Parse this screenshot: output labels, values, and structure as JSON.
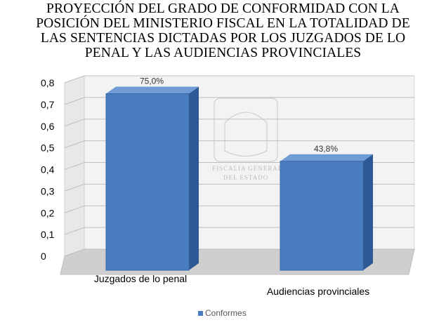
{
  "chart_data": {
    "type": "bar",
    "title_lines": [
      "PROYECCIÓN DEL GRADO DE CONFORMIDAD CON LA",
      "POSICIÓN DEL MINISTERIO FISCAL EN LA TOTALIDAD DE",
      "LAS SENTENCIAS DICTADAS POR LOS JUZGADOS DE LO",
      "PENAL Y LAS AUDIENCIAS PROVINCIALES"
    ],
    "categories": [
      "Juzgados de lo penal",
      "Audiencias provinciales"
    ],
    "series": [
      {
        "name": "Conformes",
        "values": [
          0.75,
          0.438
        ],
        "labels": [
          "75,0%",
          "43,8%"
        ]
      }
    ],
    "yticks": [
      "0",
      "0,1",
      "0,2",
      "0,3",
      "0,4",
      "0,5",
      "0,6",
      "0,7",
      "0,8"
    ],
    "ylim": [
      0,
      0.8
    ],
    "grid": true,
    "legend_position": "bottom",
    "three_d": true,
    "colors": {
      "bar_front": "#4a7cc0",
      "bar_side": "#2d5a94",
      "bar_top": "#6f9bd6",
      "wall": "#f3f3f3",
      "floor": "#cfcfcf"
    }
  },
  "watermark": {
    "lines": [
      "FISCALIA GENERAL",
      "DEL ESTADO"
    ]
  }
}
